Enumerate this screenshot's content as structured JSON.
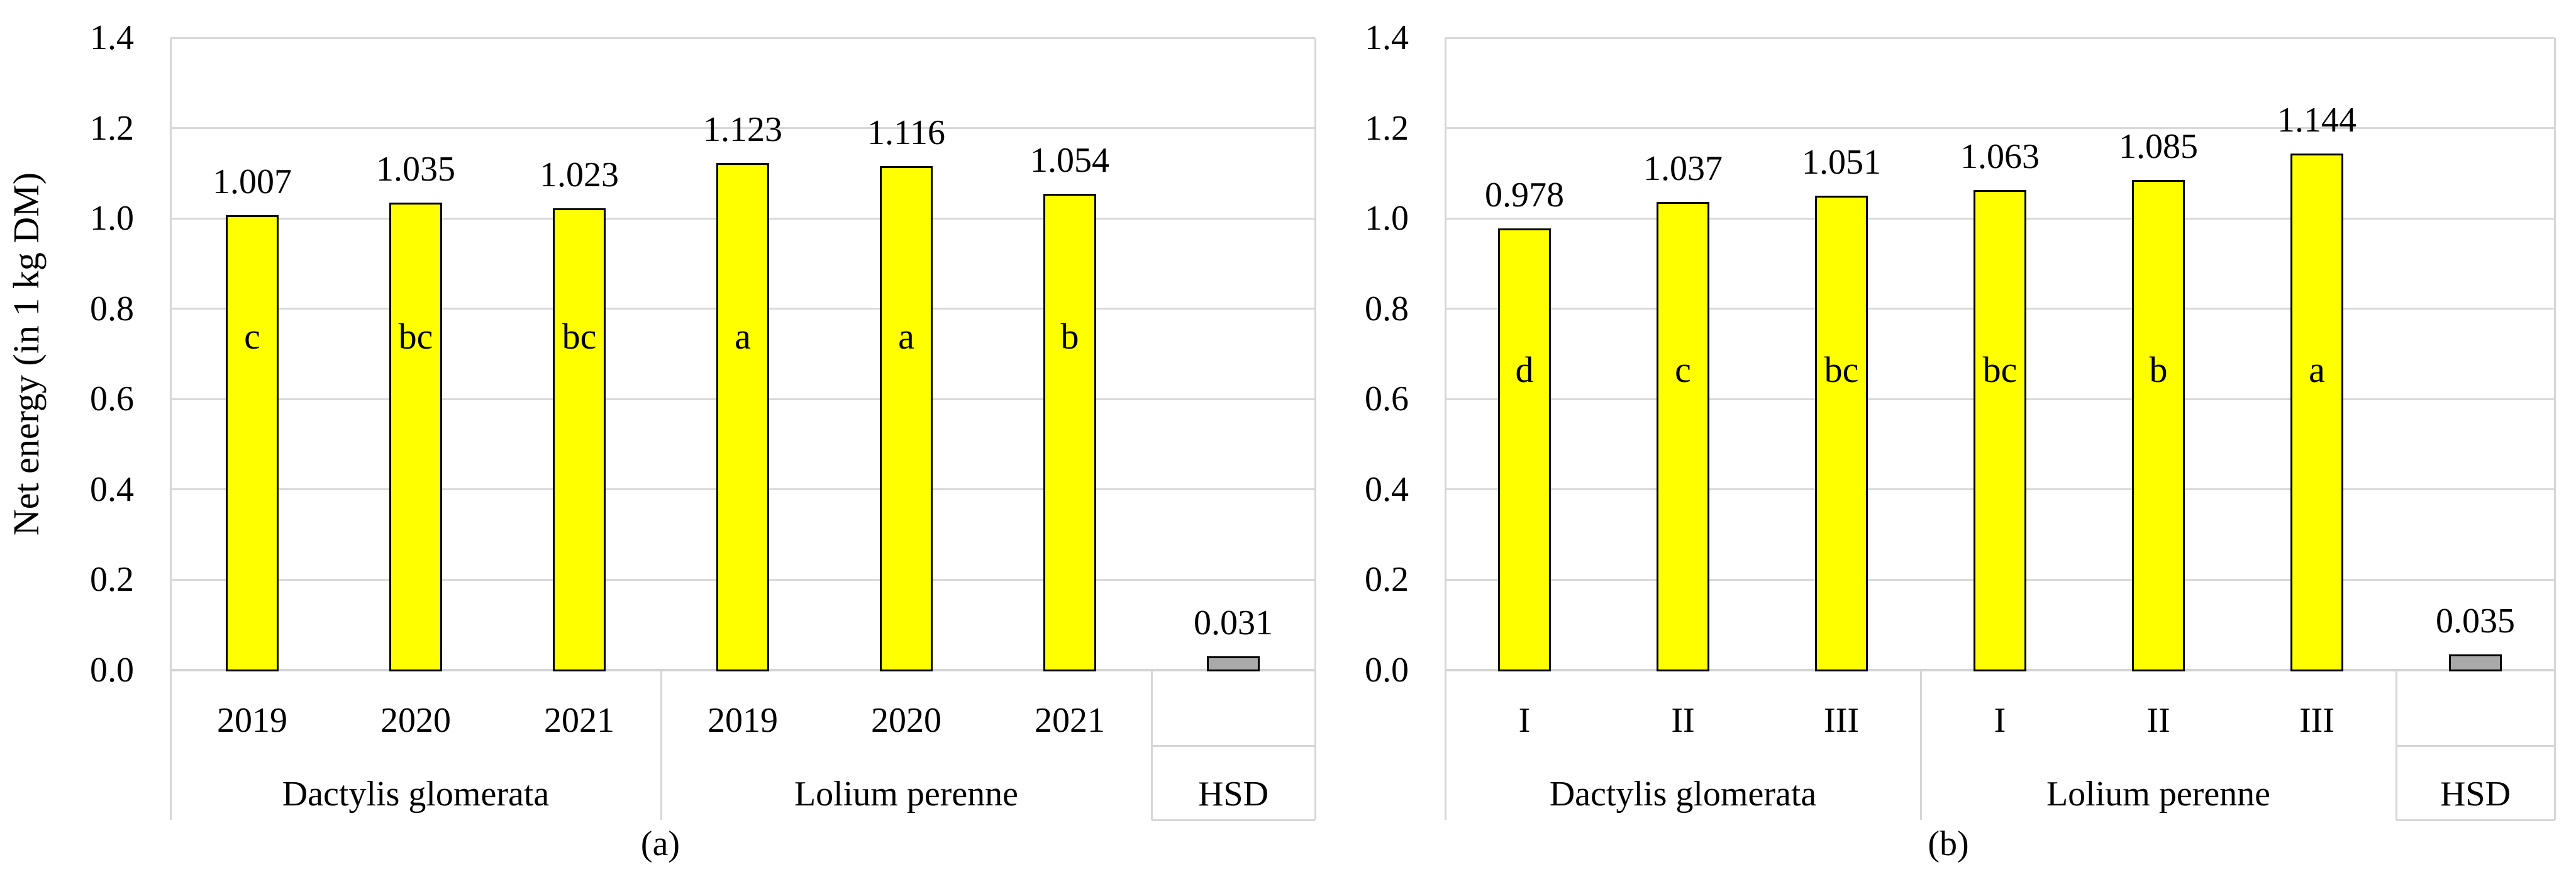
{
  "figure": {
    "background": "#ffffff",
    "colors": {
      "bar_fill": "#ffff00",
      "bar_border": "#000000",
      "hsd_fill": "#a9a9a9",
      "gridline": "#d9d9d9",
      "axis_line": "#d4d4d4",
      "text": "#000000"
    }
  },
  "chart_data": [
    {
      "id": "a",
      "type": "bar",
      "caption": "(a)",
      "ylabel": "Net energy (in 1 kg DM)",
      "ylim": [
        0.0,
        1.4
      ],
      "yticks": [
        "0.0",
        "0.2",
        "0.4",
        "0.6",
        "0.8",
        "1.0",
        "1.2",
        "1.4"
      ],
      "grid": "horizontal",
      "legend": "none",
      "groups": [
        {
          "label": "Dactylis glomerata",
          "bars": [
            {
              "tick": "2019",
              "value": 1.007,
              "label": "1.007",
              "letter": "c"
            },
            {
              "tick": "2020",
              "value": 1.035,
              "label": "1.035",
              "letter": "bc"
            },
            {
              "tick": "2021",
              "value": 1.023,
              "label": "1.023",
              "letter": "bc"
            }
          ]
        },
        {
          "label": "Lolium perenne",
          "bars": [
            {
              "tick": "2019",
              "value": 1.123,
              "label": "1.123",
              "letter": "a"
            },
            {
              "tick": "2020",
              "value": 1.116,
              "label": "1.116",
              "letter": "a"
            },
            {
              "tick": "2021",
              "value": 1.054,
              "label": "1.054",
              "letter": "b"
            }
          ]
        },
        {
          "label": "HSD",
          "bars": [
            {
              "tick": "",
              "value": 0.031,
              "label": "0.031",
              "letter": "",
              "style": "hsd"
            }
          ]
        }
      ]
    },
    {
      "id": "b",
      "type": "bar",
      "caption": "(b)",
      "ylabel": "",
      "ylim": [
        0.0,
        1.4
      ],
      "yticks": [
        "0.0",
        "0.2",
        "0.4",
        "0.6",
        "0.8",
        "1.0",
        "1.2",
        "1.4"
      ],
      "grid": "horizontal",
      "legend": "none",
      "groups": [
        {
          "label": "Dactylis glomerata",
          "bars": [
            {
              "tick": "I",
              "value": 0.978,
              "label": "0.978",
              "letter": "d"
            },
            {
              "tick": "II",
              "value": 1.037,
              "label": "1.037",
              "letter": "c"
            },
            {
              "tick": "III",
              "value": 1.051,
              "label": "1.051",
              "letter": "bc"
            }
          ]
        },
        {
          "label": "Lolium perenne",
          "bars": [
            {
              "tick": "I",
              "value": 1.063,
              "label": "1.063",
              "letter": "bc"
            },
            {
              "tick": "II",
              "value": 1.085,
              "label": "1.085",
              "letter": "b"
            },
            {
              "tick": "III",
              "value": 1.144,
              "label": "1.144",
              "letter": "a"
            }
          ]
        },
        {
          "label": "HSD",
          "bars": [
            {
              "tick": "",
              "value": 0.035,
              "label": "0.035",
              "letter": "",
              "style": "hsd"
            }
          ]
        }
      ]
    }
  ]
}
